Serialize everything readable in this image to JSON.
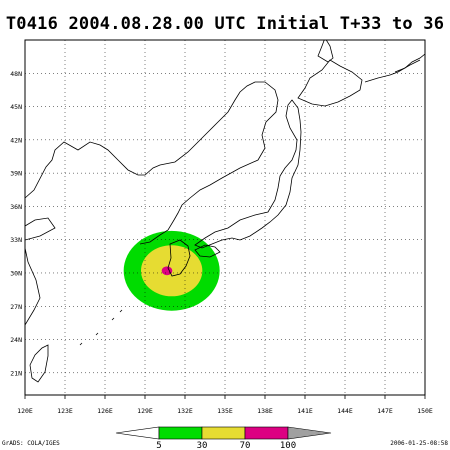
{
  "title": "T0416  2004.08.28.00  UTC  Initial  T+33  to  36",
  "map": {
    "lon_range": [
      120,
      150
    ],
    "lat_range": [
      19,
      51
    ],
    "lon_ticks": [
      "120E",
      "123E",
      "126E",
      "129E",
      "132E",
      "135E",
      "138E",
      "141E",
      "144E",
      "147E",
      "150E"
    ],
    "lat_ticks": [
      "21N",
      "24N",
      "27N",
      "30N",
      "33N",
      "36N",
      "39N",
      "42N",
      "45N",
      "48N"
    ],
    "grid": "dotted",
    "probability_areas": [
      {
        "level": "5-30",
        "color": "#00dc00",
        "center_lon": 131.0,
        "center_lat": 30.2,
        "radius_deg": 3.6
      },
      {
        "level": "30-70",
        "color": "#e6dc32",
        "center_lon": 131.0,
        "center_lat": 30.2,
        "radius_deg": 2.3
      },
      {
        "level": "70-100",
        "color": "#dc0082",
        "center_lon": 130.65,
        "center_lat": 30.2,
        "radius_deg": 0.4
      }
    ]
  },
  "legend": {
    "labels": [
      "5",
      "30",
      "70",
      "100"
    ],
    "colors": [
      "#00dc00",
      "#e6dc32",
      "#dc0082",
      "#a0a0a0"
    ]
  },
  "footer": {
    "left": "GrADS: COLA/IGES",
    "right": "2006-01-25-08:58"
  }
}
